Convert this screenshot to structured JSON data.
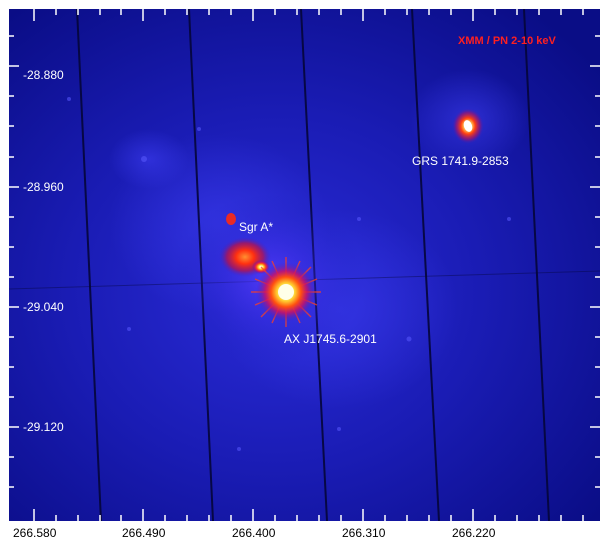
{
  "figure": {
    "instrument_label": "XMM / PN  2-10 keV",
    "sources": [
      {
        "id": "grs",
        "label": "GRS 1741.9-2853"
      },
      {
        "id": "sgra",
        "label": "Sgr A*"
      },
      {
        "id": "ax",
        "label": "AX J1745.6-2901"
      }
    ]
  },
  "axes": {
    "y_ticks": [
      "-28.880",
      "-28.960",
      "-29.040",
      "-29.120"
    ],
    "x_ticks": [
      "266.580",
      "266.490",
      "266.400",
      "266.310",
      "266.220"
    ]
  },
  "colors": {
    "background": "#0a0e86",
    "instrument_label": "#ff2020",
    "labels": "#ffffff",
    "ticks": "#ffffff"
  }
}
